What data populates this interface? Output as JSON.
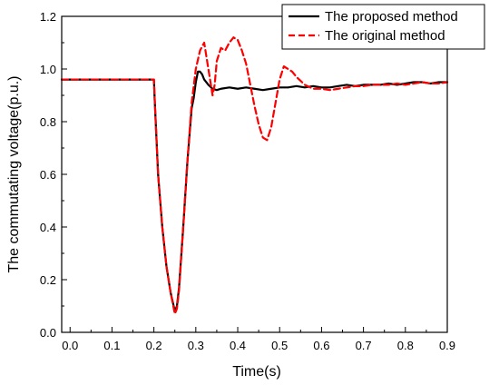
{
  "chart_data": {
    "type": "line",
    "xlabel": "Time(s)",
    "ylabel": "The commutating voltage(p.u.)",
    "xlim": [
      -0.02,
      0.9
    ],
    "ylim": [
      0.0,
      1.2
    ],
    "xticks": [
      "0.0",
      "0.1",
      "0.2",
      "0.3",
      "0.4",
      "0.5",
      "0.6",
      "0.7",
      "0.8",
      "0.9"
    ],
    "yticks": [
      "0.0",
      "0.2",
      "0.4",
      "0.6",
      "0.8",
      "1.0",
      "1.2"
    ],
    "grid": false,
    "legend_position": "top-right",
    "series": [
      {
        "name": "The proposed method",
        "color": "#000000",
        "style": "solid",
        "points": [
          [
            -0.02,
            0.96
          ],
          [
            0.2,
            0.96
          ],
          [
            0.202,
            0.88
          ],
          [
            0.21,
            0.6
          ],
          [
            0.22,
            0.4
          ],
          [
            0.23,
            0.25
          ],
          [
            0.24,
            0.15
          ],
          [
            0.25,
            0.08
          ],
          [
            0.255,
            0.1
          ],
          [
            0.26,
            0.17
          ],
          [
            0.27,
            0.4
          ],
          [
            0.28,
            0.65
          ],
          [
            0.29,
            0.85
          ],
          [
            0.295,
            0.89
          ],
          [
            0.3,
            0.95
          ],
          [
            0.305,
            0.99
          ],
          [
            0.31,
            0.99
          ],
          [
            0.315,
            0.98
          ],
          [
            0.32,
            0.96
          ],
          [
            0.33,
            0.94
          ],
          [
            0.34,
            0.925
          ],
          [
            0.35,
            0.92
          ],
          [
            0.36,
            0.925
          ],
          [
            0.38,
            0.93
          ],
          [
            0.4,
            0.925
          ],
          [
            0.42,
            0.93
          ],
          [
            0.44,
            0.925
          ],
          [
            0.46,
            0.92
          ],
          [
            0.48,
            0.925
          ],
          [
            0.5,
            0.93
          ],
          [
            0.52,
            0.93
          ],
          [
            0.54,
            0.935
          ],
          [
            0.56,
            0.93
          ],
          [
            0.58,
            0.935
          ],
          [
            0.6,
            0.93
          ],
          [
            0.62,
            0.93
          ],
          [
            0.64,
            0.935
          ],
          [
            0.66,
            0.94
          ],
          [
            0.68,
            0.935
          ],
          [
            0.7,
            0.94
          ],
          [
            0.72,
            0.94
          ],
          [
            0.74,
            0.94
          ],
          [
            0.76,
            0.945
          ],
          [
            0.78,
            0.94
          ],
          [
            0.8,
            0.945
          ],
          [
            0.82,
            0.95
          ],
          [
            0.84,
            0.95
          ],
          [
            0.86,
            0.945
          ],
          [
            0.88,
            0.95
          ],
          [
            0.9,
            0.95
          ]
        ]
      },
      {
        "name": "The original method",
        "color": "#ff0000",
        "style": "dashed",
        "points": [
          [
            -0.02,
            0.96
          ],
          [
            0.2,
            0.96
          ],
          [
            0.202,
            0.88
          ],
          [
            0.21,
            0.6
          ],
          [
            0.22,
            0.4
          ],
          [
            0.23,
            0.25
          ],
          [
            0.24,
            0.15
          ],
          [
            0.25,
            0.07
          ],
          [
            0.255,
            0.09
          ],
          [
            0.26,
            0.16
          ],
          [
            0.27,
            0.4
          ],
          [
            0.28,
            0.65
          ],
          [
            0.29,
            0.87
          ],
          [
            0.3,
            1.0
          ],
          [
            0.31,
            1.07
          ],
          [
            0.32,
            1.1
          ],
          [
            0.33,
            1.0
          ],
          [
            0.335,
            0.95
          ],
          [
            0.34,
            0.9
          ],
          [
            0.345,
            0.94
          ],
          [
            0.35,
            1.03
          ],
          [
            0.36,
            1.08
          ],
          [
            0.37,
            1.07
          ],
          [
            0.38,
            1.1
          ],
          [
            0.39,
            1.12
          ],
          [
            0.4,
            1.11
          ],
          [
            0.41,
            1.07
          ],
          [
            0.42,
            1.02
          ],
          [
            0.43,
            0.94
          ],
          [
            0.44,
            0.86
          ],
          [
            0.45,
            0.79
          ],
          [
            0.46,
            0.74
          ],
          [
            0.47,
            0.73
          ],
          [
            0.48,
            0.78
          ],
          [
            0.49,
            0.87
          ],
          [
            0.5,
            0.96
          ],
          [
            0.51,
            1.01
          ],
          [
            0.52,
            1.0
          ],
          [
            0.53,
            0.99
          ],
          [
            0.54,
            0.97
          ],
          [
            0.56,
            0.94
          ],
          [
            0.58,
            0.925
          ],
          [
            0.6,
            0.925
          ],
          [
            0.62,
            0.92
          ],
          [
            0.64,
            0.925
          ],
          [
            0.66,
            0.93
          ],
          [
            0.68,
            0.935
          ],
          [
            0.7,
            0.935
          ],
          [
            0.72,
            0.94
          ],
          [
            0.74,
            0.94
          ],
          [
            0.76,
            0.94
          ],
          [
            0.78,
            0.945
          ],
          [
            0.8,
            0.94
          ],
          [
            0.82,
            0.945
          ],
          [
            0.84,
            0.95
          ],
          [
            0.86,
            0.945
          ],
          [
            0.88,
            0.945
          ],
          [
            0.9,
            0.95
          ]
        ]
      }
    ]
  }
}
